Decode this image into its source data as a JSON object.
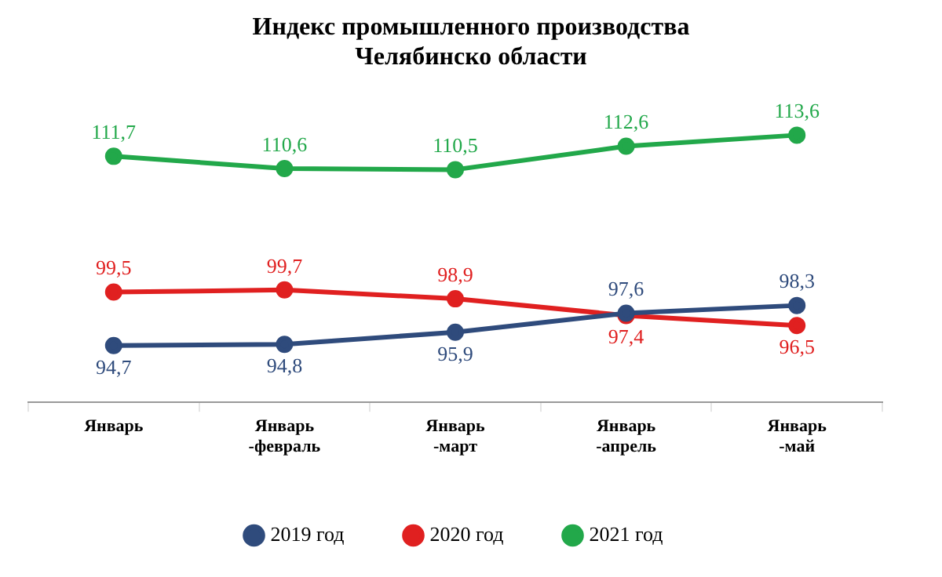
{
  "chart_data": {
    "type": "line",
    "title": "Индекс промышленного производства Челябинско области",
    "categories": [
      "Январь",
      "Январь -февраль",
      "Январь -март",
      "Январь -апрель",
      "Январь -май"
    ],
    "series": [
      {
        "name": "2019 год",
        "color": "#2f4b7c",
        "values": [
          94.7,
          94.8,
          95.9,
          97.6,
          98.3
        ],
        "value_labels": [
          "94,7",
          "94,8",
          "95,9",
          "97,6",
          "98,3"
        ]
      },
      {
        "name": "2020 год",
        "color": "#e02020",
        "values": [
          99.5,
          99.7,
          98.9,
          97.4,
          96.5
        ],
        "value_labels": [
          "99,5",
          "99,7",
          "98,9",
          "97,4",
          "96,5"
        ]
      },
      {
        "name": "2021 год",
        "color": "#22a84a",
        "values": [
          111.7,
          110.6,
          110.5,
          112.6,
          113.6
        ],
        "value_labels": [
          "111,7",
          "110,6",
          "110,5",
          "112,6",
          "113,6"
        ]
      }
    ],
    "legend": "bottom",
    "marker": "circle",
    "line_style": "solid"
  }
}
